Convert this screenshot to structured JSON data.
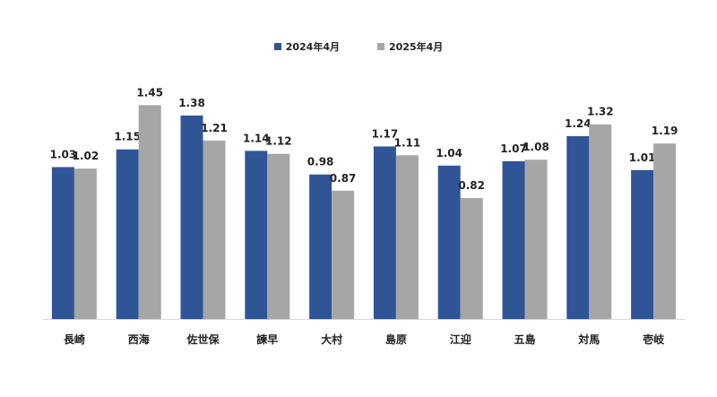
{
  "chart_data": {
    "type": "bar",
    "title": "",
    "xlabel": "",
    "ylabel": "",
    "ylim": [
      0,
      1.55
    ],
    "grid": false,
    "legend_position": "top-center",
    "categories": [
      "長崎",
      "西海",
      "佐世保",
      "諫早",
      "大村",
      "島原",
      "江迎",
      "五島",
      "対馬",
      "壱岐"
    ],
    "series": [
      {
        "name": "2024年4月",
        "color": "#2F5597",
        "values": [
          1.03,
          1.15,
          1.38,
          1.14,
          0.98,
          1.17,
          1.04,
          1.07,
          1.24,
          1.01
        ],
        "labels": [
          "1.03",
          "1.15",
          "1.38",
          "1.14",
          "0.98",
          "1.17",
          "1.04",
          "1.07",
          "1.24",
          "1.01"
        ]
      },
      {
        "name": "2025年4月",
        "color": "#A6A6A6",
        "values": [
          1.02,
          1.45,
          1.21,
          1.12,
          0.87,
          1.11,
          0.82,
          1.08,
          1.32,
          1.19
        ],
        "labels": [
          "1.02",
          "1.45",
          "1.21",
          "1.12",
          "0.87",
          "1.11",
          "0.82",
          "1.08",
          "1.32",
          "1.19"
        ]
      }
    ]
  }
}
